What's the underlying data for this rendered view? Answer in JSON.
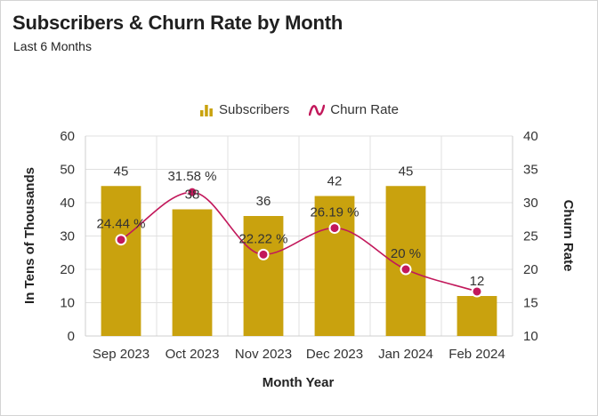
{
  "header": {
    "title": "Subscribers & Churn Rate by Month",
    "subtitle": "Last 6 Months"
  },
  "colors": {
    "bar": "#c9a20e",
    "line": "#c2185b",
    "grid": "#e0e0e0"
  },
  "legend": {
    "bars_label": "Subscribers",
    "line_label": "Churn Rate"
  },
  "chart_data": {
    "type": "bar+line",
    "title": "Subscribers & Churn Rate by Month",
    "subtitle": "Last 6 Months",
    "categories": [
      "Sep 2023",
      "Oct 2023",
      "Nov 2023",
      "Dec 2023",
      "Jan 2024",
      "Feb 2024"
    ],
    "series": [
      {
        "name": "Subscribers",
        "type": "bar",
        "axis": "left",
        "values": [
          45,
          38,
          36,
          42,
          45,
          12
        ],
        "labels": [
          "45",
          "38",
          "36",
          "42",
          "45",
          "12"
        ]
      },
      {
        "name": "Churn Rate",
        "type": "line",
        "axis": "right",
        "smooth": true,
        "values": [
          24.44,
          31.58,
          22.22,
          26.19,
          20,
          16.67
        ],
        "labels": [
          "24.44 %",
          "31.58 %",
          "22.22 %",
          "26.19 %",
          "20 %",
          ""
        ]
      }
    ],
    "xlabel": "Month Year",
    "ylabel_left": "In Tens of Thousands",
    "ylabel_right": "Churn Rate",
    "ylim_left": [
      0,
      60
    ],
    "ylim_right": [
      10,
      40
    ],
    "yticks_left": [
      "0",
      "10",
      "20",
      "30",
      "40",
      "50",
      "60"
    ],
    "yticks_right": [
      "10",
      "15",
      "20",
      "25",
      "30",
      "35",
      "40"
    ],
    "grid": true,
    "legend_position": "top-center"
  }
}
